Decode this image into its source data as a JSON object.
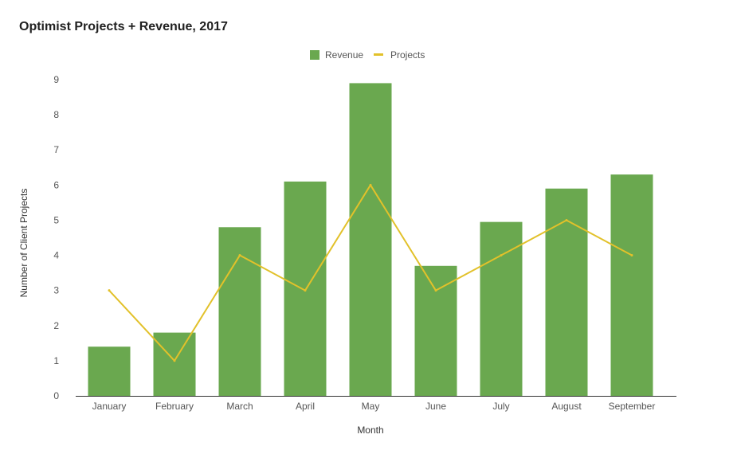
{
  "chart_data": {
    "type": "bar",
    "title": "Optimist Projects + Revenue, 2017",
    "xlabel": "Month",
    "ylabel": "Number of Client Projects",
    "categories": [
      "January",
      "February",
      "March",
      "April",
      "May",
      "June",
      "July",
      "August",
      "September"
    ],
    "ylim": [
      0,
      9
    ],
    "yticks": [
      0,
      1,
      2,
      3,
      4,
      5,
      6,
      7,
      8,
      9
    ],
    "grid": false,
    "legend_position": "top-center",
    "series": [
      {
        "name": "Revenue",
        "type": "bar",
        "color": "#6aa84f",
        "values": [
          1.4,
          1.8,
          4.8,
          6.1,
          8.9,
          3.7,
          4.95,
          5.9,
          6.3
        ]
      },
      {
        "name": "Projects",
        "type": "line",
        "color": "#e2c12a",
        "values": [
          3,
          1,
          4,
          3,
          6,
          3,
          4,
          5,
          4
        ]
      }
    ]
  }
}
